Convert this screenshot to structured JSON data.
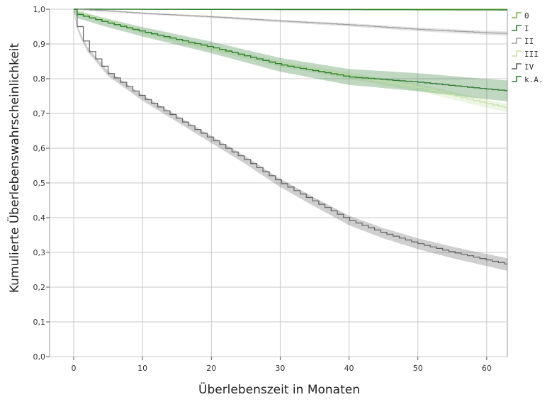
{
  "chart_data": {
    "type": "line",
    "subtype": "kaplan-meier",
    "title": "",
    "xlabel": "Überlebenszeit in Monaten",
    "ylabel": "Kumulierte Überlebenswahrscheinlichkeit",
    "xlim": [
      -3.5,
      63
    ],
    "ylim": [
      0,
      1
    ],
    "x_ticks": [
      0,
      10,
      20,
      30,
      40,
      50,
      60
    ],
    "x_tick_labels": [
      "0",
      "10",
      "20",
      "30",
      "40",
      "50",
      "60"
    ],
    "y_ticks": [
      0,
      0.1,
      0.2,
      0.3,
      0.4,
      0.5,
      0.6,
      0.7,
      0.8,
      0.9,
      1.0
    ],
    "y_tick_labels": [
      "0,0",
      "0,1",
      "0,2",
      "0,3",
      "0,4",
      "0,5",
      "0,6",
      "0,7",
      "0,8",
      "0,9",
      "1,0"
    ],
    "grid": true,
    "legend_position": "right",
    "series": [
      {
        "name": "0",
        "color": "#7cb342",
        "points": [
          [
            0,
            1.0
          ],
          [
            63,
            1.0
          ]
        ],
        "ci_width": 0.002
      },
      {
        "name": "I",
        "color": "#2e7d32",
        "points": [
          [
            0,
            1.0
          ],
          [
            63,
            0.998
          ]
        ],
        "ci_width": 0.002
      },
      {
        "name": "II",
        "color": "#9e9e9e",
        "points": [
          [
            0,
            1.0
          ],
          [
            5,
            0.995
          ],
          [
            10,
            0.988
          ],
          [
            20,
            0.978
          ],
          [
            30,
            0.966
          ],
          [
            40,
            0.955
          ],
          [
            50,
            0.942
          ],
          [
            60,
            0.932
          ],
          [
            63,
            0.93
          ]
        ],
        "ci_width": 0.006
      },
      {
        "name": "III",
        "color": "#c5e1a5",
        "points": [
          [
            0,
            1.0
          ],
          [
            1,
            0.985
          ],
          [
            5,
            0.965
          ],
          [
            10,
            0.935
          ],
          [
            20,
            0.888
          ],
          [
            30,
            0.842
          ],
          [
            40,
            0.808
          ],
          [
            50,
            0.775
          ],
          [
            60,
            0.728
          ],
          [
            63,
            0.715
          ]
        ],
        "ci_width": 0.012
      },
      {
        "name": "IV",
        "color": "#616161",
        "points": [
          [
            0,
            1.0
          ],
          [
            0.6,
            0.94
          ],
          [
            2,
            0.885
          ],
          [
            5,
            0.815
          ],
          [
            10,
            0.745
          ],
          [
            15,
            0.685
          ],
          [
            20,
            0.625
          ],
          [
            25,
            0.565
          ],
          [
            30,
            0.5
          ],
          [
            35,
            0.445
          ],
          [
            40,
            0.392
          ],
          [
            45,
            0.355
          ],
          [
            50,
            0.325
          ],
          [
            55,
            0.3
          ],
          [
            60,
            0.278
          ],
          [
            63,
            0.265
          ]
        ],
        "ci_width": 0.018
      },
      {
        "name": "k.A.",
        "color": "#2e7d32",
        "points": [
          [
            0,
            1.0
          ],
          [
            0.5,
            0.985
          ],
          [
            5,
            0.96
          ],
          [
            10,
            0.935
          ],
          [
            20,
            0.89
          ],
          [
            30,
            0.84
          ],
          [
            40,
            0.805
          ],
          [
            50,
            0.79
          ],
          [
            60,
            0.77
          ],
          [
            63,
            0.765
          ]
        ],
        "ci_width": 0.03
      }
    ]
  }
}
